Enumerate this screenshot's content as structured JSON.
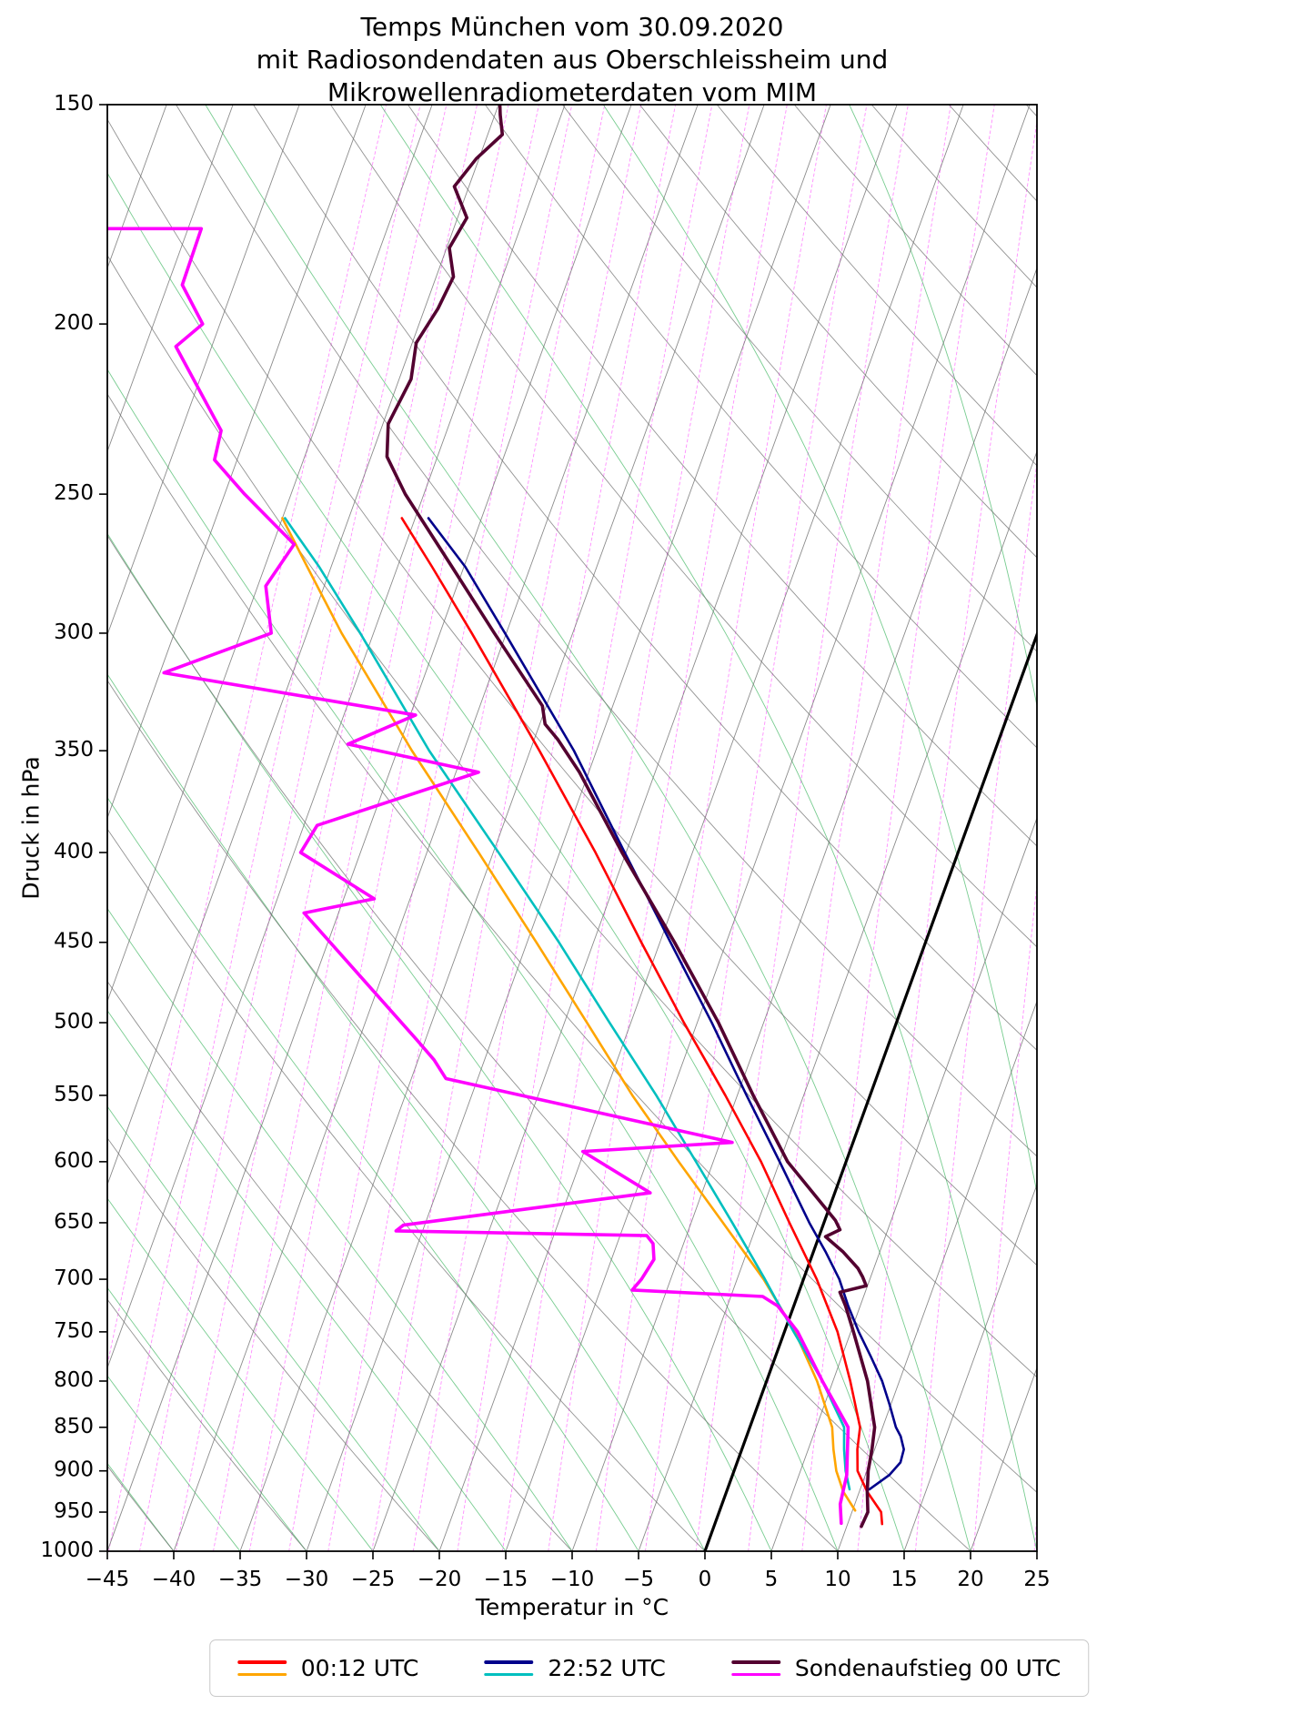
{
  "title": {
    "line1": "Temps München vom 30.09.2020",
    "line2": "mit Radiosondendaten aus Oberschleissheim und",
    "line3": "Mikrowellenradiometerdaten vom MIM"
  },
  "axes": {
    "x_label": "Temperatur in °C",
    "y_label": "Druck in hPa",
    "x_ticks": [
      -45,
      -40,
      -35,
      -30,
      -25,
      -20,
      -15,
      -10,
      -5,
      0,
      5,
      10,
      15,
      20,
      25
    ],
    "y_ticks": [
      150,
      200,
      250,
      300,
      350,
      400,
      450,
      500,
      550,
      600,
      650,
      700,
      750,
      800,
      850,
      900,
      950,
      1000
    ],
    "x_range": [
      -45,
      25
    ],
    "p_range": [
      150,
      1000
    ]
  },
  "legend": {
    "entries": [
      {
        "label": "00:12 UTC",
        "colors": [
          "#ff0000",
          "#ffa500"
        ]
      },
      {
        "label": "22:52 UTC",
        "colors": [
          "#00008b",
          "#00bfbf"
        ]
      },
      {
        "label": "Sondenaufstieg 00 UTC",
        "colors": [
          "#530030",
          "#ff00ff"
        ]
      }
    ]
  },
  "chart_data": {
    "type": "line",
    "projection": "skew-T log-P",
    "skew_deg_per_ln_p": 20.8,
    "x_range": [
      -45,
      25
    ],
    "p_range": [
      150,
      1000
    ],
    "background": {
      "isotherm_range": [
        -90,
        30
      ],
      "isotherm_step": 5,
      "highlight_isotherm": 0,
      "dry_adiabat_range": [
        -40,
        170
      ],
      "dry_adiabat_step": 10,
      "moist_adiabat_range": [
        -45,
        40
      ],
      "moist_adiabat_step": 5,
      "mixing_ratio_gpkg": [
        0.05,
        0.07,
        0.09,
        0.12,
        0.16,
        0.21,
        0.28,
        0.37,
        0.5,
        0.66,
        0.88,
        1.17,
        1.55,
        2.06,
        2.74,
        3.64,
        4.84,
        6.43,
        8.55,
        11.4,
        15.1,
        20.1,
        26.7,
        35.5
      ],
      "colors": {
        "isotherm": "rgba(110,110,110,0.8)",
        "highlight": "#000000",
        "dry_adiabat": "rgba(110,110,110,0.75)",
        "moist_adiabat": "rgba(30,170,70,0.6)",
        "mixing_ratio": "rgba(255,30,255,0.5)"
      }
    },
    "series": [
      {
        "name": "00:12 UTC Temperatur",
        "color": "#ff0000",
        "width": 2.6,
        "points": [
          [
            965,
            12.6
          ],
          [
            950,
            12.2
          ],
          [
            925,
            10.6
          ],
          [
            900,
            9.3
          ],
          [
            875,
            8.7
          ],
          [
            850,
            8.3
          ],
          [
            800,
            6.3
          ],
          [
            750,
            4.0
          ],
          [
            700,
            1.0
          ],
          [
            650,
            -2.6
          ],
          [
            600,
            -6.4
          ],
          [
            550,
            -10.9
          ],
          [
            500,
            -16.0
          ],
          [
            450,
            -21.4
          ],
          [
            400,
            -27.3
          ],
          [
            350,
            -34.3
          ],
          [
            300,
            -42.6
          ],
          [
            275,
            -47.4
          ],
          [
            258,
            -51.0
          ]
        ]
      },
      {
        "name": "00:12 UTC Taupunkt",
        "color": "#ffa500",
        "width": 2.6,
        "points": [
          [
            948,
            10.2
          ],
          [
            925,
            8.8
          ],
          [
            900,
            7.7
          ],
          [
            875,
            6.9
          ],
          [
            850,
            6.2
          ],
          [
            800,
            3.8
          ],
          [
            750,
            0.8
          ],
          [
            700,
            -3.0
          ],
          [
            650,
            -7.6
          ],
          [
            600,
            -12.6
          ],
          [
            550,
            -17.9
          ],
          [
            500,
            -23.3
          ],
          [
            450,
            -29.3
          ],
          [
            400,
            -36.1
          ],
          [
            350,
            -43.9
          ],
          [
            300,
            -52.4
          ],
          [
            275,
            -56.8
          ],
          [
            258,
            -60.0
          ]
        ]
      },
      {
        "name": "22:52 UTC Temperatur",
        "color": "#00008b",
        "width": 2.6,
        "points": [
          [
            922,
            10.7
          ],
          [
            905,
            11.8
          ],
          [
            890,
            12.3
          ],
          [
            875,
            12.2
          ],
          [
            860,
            11.6
          ],
          [
            850,
            11.0
          ],
          [
            825,
            9.9
          ],
          [
            800,
            8.7
          ],
          [
            775,
            7.2
          ],
          [
            750,
            5.6
          ],
          [
            725,
            4.1
          ],
          [
            700,
            2.7
          ],
          [
            675,
            0.9
          ],
          [
            650,
            -1.1
          ],
          [
            600,
            -5.0
          ],
          [
            550,
            -9.3
          ],
          [
            500,
            -13.9
          ],
          [
            450,
            -19.2
          ],
          [
            400,
            -25.1
          ],
          [
            350,
            -31.7
          ],
          [
            300,
            -40.1
          ],
          [
            275,
            -44.9
          ],
          [
            258,
            -49.0
          ]
        ]
      },
      {
        "name": "22:52 UTC Taupunkt",
        "color": "#00bfbf",
        "width": 2.6,
        "points": [
          [
            922,
            9.2
          ],
          [
            900,
            8.4
          ],
          [
            875,
            7.7
          ],
          [
            850,
            7.1
          ],
          [
            800,
            4.2
          ],
          [
            750,
            0.7
          ],
          [
            700,
            -2.9
          ],
          [
            650,
            -6.9
          ],
          [
            600,
            -11.3
          ],
          [
            550,
            -16.1
          ],
          [
            500,
            -21.6
          ],
          [
            450,
            -27.6
          ],
          [
            400,
            -34.6
          ],
          [
            350,
            -42.6
          ],
          [
            300,
            -51.0
          ],
          [
            275,
            -55.9
          ],
          [
            258,
            -59.8
          ]
        ]
      },
      {
        "name": "Sondenaufstieg 00 UTC Temperatur",
        "color": "#530030",
        "width": 3.6,
        "points": [
          [
            968,
            11.1
          ],
          [
            950,
            11.2
          ],
          [
            925,
            10.6
          ],
          [
            900,
            10.1
          ],
          [
            875,
            9.8
          ],
          [
            850,
            9.4
          ],
          [
            800,
            7.6
          ],
          [
            750,
            5.2
          ],
          [
            725,
            3.9
          ],
          [
            712,
            3.1
          ],
          [
            706,
            4.9
          ],
          [
            698,
            4.4
          ],
          [
            690,
            3.8
          ],
          [
            675,
            2.2
          ],
          [
            662,
            0.5
          ],
          [
            656,
            1.4
          ],
          [
            648,
            0.8
          ],
          [
            600,
            -4.4
          ],
          [
            550,
            -8.8
          ],
          [
            500,
            -13.4
          ],
          [
            450,
            -18.9
          ],
          [
            400,
            -25.3
          ],
          [
            360,
            -30.7
          ],
          [
            345,
            -33.2
          ],
          [
            338,
            -34.6
          ],
          [
            330,
            -35.3
          ],
          [
            300,
            -40.9
          ],
          [
            275,
            -45.9
          ],
          [
            250,
            -51.4
          ],
          [
            238,
            -53.8
          ],
          [
            228,
            -54.6
          ],
          [
            215,
            -54.1
          ],
          [
            205,
            -54.7
          ],
          [
            196,
            -54.0
          ],
          [
            188,
            -53.7
          ],
          [
            181,
            -54.8
          ],
          [
            174,
            -54.3
          ],
          [
            167,
            -56.1
          ],
          [
            161,
            -55.2
          ],
          [
            156,
            -53.9
          ],
          [
            152,
            -54.6
          ],
          [
            150,
            -54.9
          ]
        ]
      },
      {
        "name": "Sondenaufstieg 00 UTC Taupunkt",
        "color": "#ff00ff",
        "width": 3.6,
        "points": [
          [
            964,
            9.5
          ],
          [
            940,
            8.9
          ],
          [
            905,
            8.6
          ],
          [
            850,
            7.4
          ],
          [
            800,
            4.2
          ],
          [
            750,
            1.0
          ],
          [
            725,
            -1.2
          ],
          [
            716,
            -2.6
          ],
          [
            710,
            -12.6
          ],
          [
            700,
            -12.2
          ],
          [
            682,
            -11.8
          ],
          [
            668,
            -12.3
          ],
          [
            661,
            -13.0
          ],
          [
            657,
            -32.0
          ],
          [
            652,
            -31.6
          ],
          [
            625,
            -13.9
          ],
          [
            592,
            -20.1
          ],
          [
            585,
            -9.1
          ],
          [
            538,
            -32.4
          ],
          [
            525,
            -33.8
          ],
          [
            511,
            -35.7
          ],
          [
            433,
            -47.6
          ],
          [
            425,
            -42.7
          ],
          [
            400,
            -49.5
          ],
          [
            386,
            -49.0
          ],
          [
            360,
            -38.3
          ],
          [
            347,
            -48.9
          ],
          [
            334,
            -44.6
          ],
          [
            316,
            -64.7
          ],
          [
            300,
            -57.7
          ],
          [
            282,
            -59.4
          ],
          [
            267,
            -58.4
          ],
          [
            250,
            -63.5
          ],
          [
            239,
            -66.7
          ],
          [
            230,
            -67.0
          ],
          [
            206,
            -72.7
          ],
          [
            200,
            -71.3
          ],
          [
            190,
            -73.9
          ],
          [
            176.5,
            -74.0
          ],
          [
            176.5,
            -81.8
          ]
        ]
      }
    ]
  }
}
